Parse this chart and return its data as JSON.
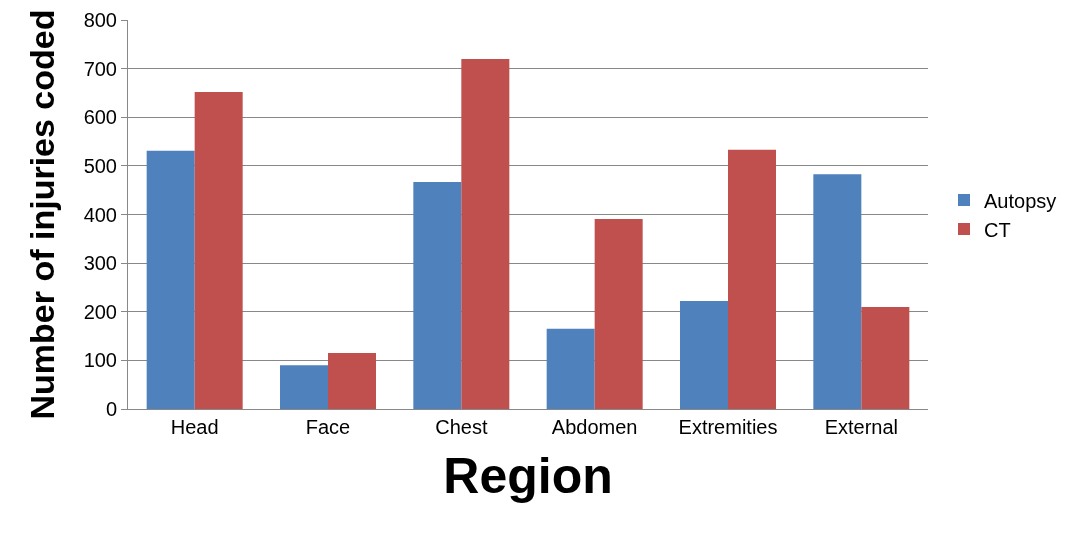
{
  "chart_data": {
    "type": "bar",
    "xlabel": "Region",
    "ylabel": "Number of injuries coded",
    "categories": [
      "Head",
      "Face",
      "Chest",
      "Abdomen",
      "Extremities",
      "External"
    ],
    "series": [
      {
        "name": "Autopsy",
        "color": "#4f81bd",
        "values": [
          531,
          90,
          467,
          165,
          222,
          483
        ]
      },
      {
        "name": "CT",
        "color": "#c0504d",
        "values": [
          652,
          115,
          720,
          391,
          533,
          210
        ]
      }
    ],
    "ylim": [
      0,
      800
    ],
    "yticks": [
      0,
      100,
      200,
      300,
      400,
      500,
      600,
      700,
      800
    ],
    "grid": "y",
    "legend": "right"
  }
}
